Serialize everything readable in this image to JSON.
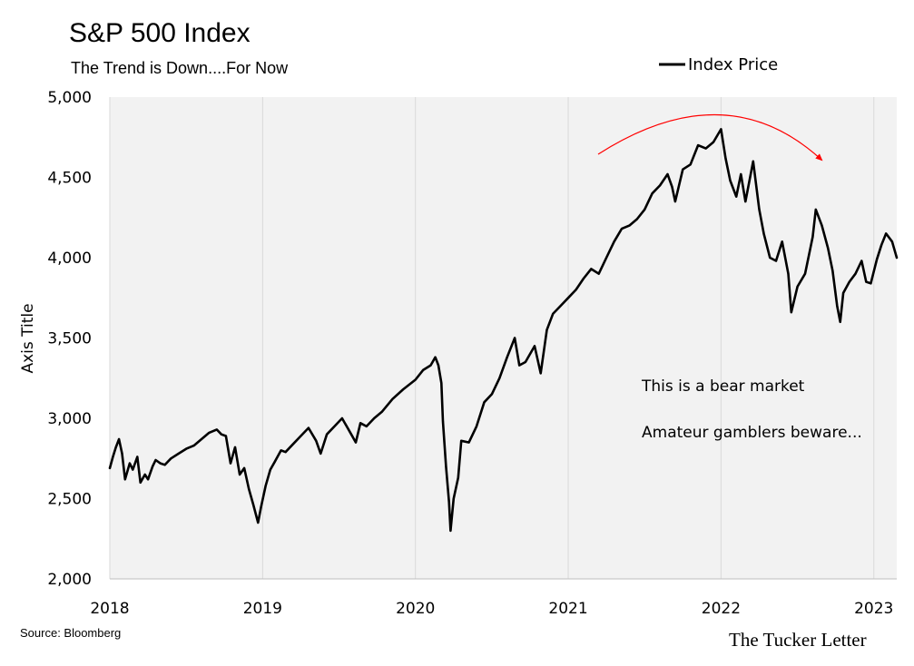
{
  "chart_data": {
    "type": "line",
    "title": "S&P 500 Index",
    "subtitle": "The Trend is Down....For Now",
    "ylabel": "Axis Title",
    "xlabel": "",
    "ylim": [
      2000,
      5000
    ],
    "xlim": [
      2018.0,
      2023.15
    ],
    "y_ticks": [
      2000,
      2500,
      3000,
      3500,
      4000,
      4500,
      5000
    ],
    "y_tick_labels": [
      "2,000",
      "2,500",
      "3,000",
      "3,500",
      "4,000",
      "4,500",
      "5,000"
    ],
    "x_ticks": [
      2018,
      2019,
      2020,
      2021,
      2022,
      2023
    ],
    "x_tick_labels": [
      "2018",
      "2019",
      "2020",
      "2021",
      "2022",
      "2023"
    ],
    "grid": "vertical",
    "legend": "top-right",
    "series": [
      {
        "name": "Index Price",
        "color": "#000000",
        "x": [
          2018.0,
          2018.02,
          2018.04,
          2018.06,
          2018.08,
          2018.1,
          2018.13,
          2018.15,
          2018.18,
          2018.2,
          2018.23,
          2018.25,
          2018.28,
          2018.3,
          2018.33,
          2018.36,
          2018.4,
          2018.45,
          2018.5,
          2018.55,
          2018.6,
          2018.65,
          2018.7,
          2018.73,
          2018.76,
          2018.79,
          2018.82,
          2018.85,
          2018.88,
          2018.91,
          2018.94,
          2018.97,
          2018.99,
          2019.02,
          2019.05,
          2019.08,
          2019.12,
          2019.15,
          2019.2,
          2019.25,
          2019.3,
          2019.35,
          2019.38,
          2019.42,
          2019.47,
          2019.52,
          2019.58,
          2019.61,
          2019.64,
          2019.68,
          2019.73,
          2019.78,
          2019.85,
          2019.92,
          2020.0,
          2020.05,
          2020.1,
          2020.13,
          2020.15,
          2020.17,
          2020.18,
          2020.2,
          2020.22,
          2020.23,
          2020.25,
          2020.28,
          2020.3,
          2020.35,
          2020.4,
          2020.45,
          2020.5,
          2020.55,
          2020.6,
          2020.65,
          2020.68,
          2020.72,
          2020.78,
          2020.82,
          2020.86,
          2020.9,
          2020.95,
          2021.0,
          2021.05,
          2021.1,
          2021.15,
          2021.2,
          2021.25,
          2021.3,
          2021.35,
          2021.4,
          2021.45,
          2021.5,
          2021.55,
          2021.6,
          2021.65,
          2021.68,
          2021.7,
          2021.75,
          2021.8,
          2021.85,
          2021.9,
          2021.95,
          2022.0,
          2022.03,
          2022.06,
          2022.1,
          2022.13,
          2022.16,
          2022.18,
          2022.21,
          2022.25,
          2022.28,
          2022.32,
          2022.36,
          2022.4,
          2022.44,
          2022.46,
          2022.5,
          2022.55,
          2022.6,
          2022.62,
          2022.66,
          2022.7,
          2022.73,
          2022.76,
          2022.78,
          2022.8,
          2022.84,
          2022.88,
          2022.92,
          2022.95,
          2022.98,
          2023.02,
          2023.05,
          2023.08,
          2023.12,
          2023.15
        ],
        "y": [
          2690,
          2760,
          2820,
          2870,
          2780,
          2620,
          2720,
          2680,
          2760,
          2600,
          2650,
          2620,
          2700,
          2740,
          2720,
          2710,
          2750,
          2780,
          2810,
          2830,
          2870,
          2910,
          2930,
          2900,
          2890,
          2720,
          2820,
          2650,
          2690,
          2560,
          2460,
          2350,
          2450,
          2580,
          2680,
          2730,
          2800,
          2790,
          2840,
          2890,
          2940,
          2860,
          2780,
          2900,
          2950,
          3000,
          2900,
          2850,
          2970,
          2950,
          3000,
          3040,
          3120,
          3180,
          3240,
          3300,
          3330,
          3380,
          3330,
          3220,
          2980,
          2700,
          2480,
          2300,
          2500,
          2630,
          2860,
          2850,
          2950,
          3100,
          3150,
          3250,
          3380,
          3500,
          3330,
          3350,
          3450,
          3280,
          3550,
          3650,
          3700,
          3750,
          3800,
          3870,
          3930,
          3900,
          4000,
          4100,
          4180,
          4200,
          4240,
          4300,
          4400,
          4450,
          4520,
          4440,
          4350,
          4550,
          4580,
          4700,
          4680,
          4720,
          4800,
          4620,
          4480,
          4380,
          4520,
          4350,
          4450,
          4600,
          4300,
          4150,
          4000,
          3980,
          4100,
          3900,
          3660,
          3820,
          3900,
          4130,
          4300,
          4200,
          4060,
          3920,
          3700,
          3600,
          3780,
          3850,
          3900,
          3980,
          3850,
          3840,
          3990,
          4080,
          4150,
          4100,
          4000
        ]
      }
    ],
    "annotations": [
      "This is a bear market",
      "Amateur gamblers beware..."
    ],
    "trend_arrow_color": "#ff0000"
  },
  "source": "Source: Bloomberg",
  "brand": "The Tucker Letter"
}
